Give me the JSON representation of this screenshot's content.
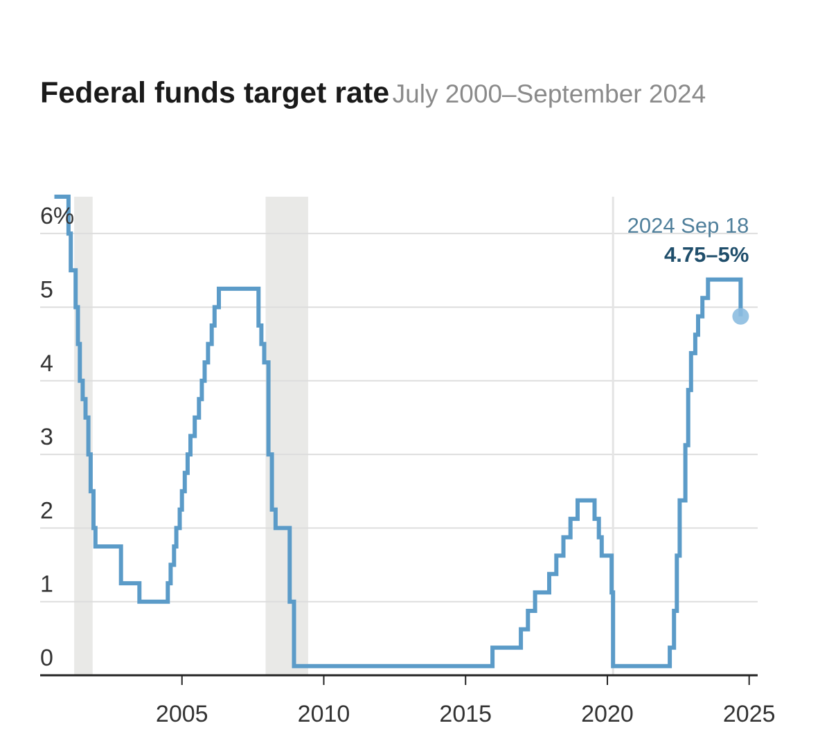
{
  "title": "Federal funds target rate",
  "subtitle": "July 2000–September 2024",
  "colors": {
    "line": "#5b9bc8",
    "marker": "#8cbde0",
    "recession": "#e9e9e7",
    "grid": "#dddddd",
    "axis": "#222222"
  },
  "chart_data": {
    "type": "line",
    "title": "Federal funds target rate",
    "subtitle": "July 2000–September 2024",
    "xlabel": "",
    "ylabel": "",
    "xlim": [
      2000,
      2025.3
    ],
    "ylim": [
      0,
      6.5
    ],
    "y_ticks": [
      0,
      1,
      2,
      3,
      4,
      5,
      6
    ],
    "y_tick_labels": [
      "0",
      "1",
      "2",
      "3",
      "4",
      "5",
      "6%"
    ],
    "x_ticks": [
      2005,
      2010,
      2015,
      2020,
      2025
    ],
    "x_tick_labels": [
      "2005",
      "2010",
      "2015",
      "2020",
      "2025"
    ],
    "grid": true,
    "step": true,
    "recessions": [
      [
        2001.2,
        2001.85
      ],
      [
        2007.95,
        2009.45
      ]
    ],
    "reference_line_x": 2020.2,
    "series": [
      {
        "x": [
          2000.5,
          2001.0,
          2001.08,
          2001.25,
          2001.33,
          2001.4,
          2001.5,
          2001.6,
          2001.7,
          2001.78,
          2001.88,
          2001.95,
          2002.85,
          2003.5,
          2004.5,
          2004.6,
          2004.72,
          2004.8,
          2004.92,
          2005.0,
          2005.1,
          2005.2,
          2005.3,
          2005.45,
          2005.6,
          2005.7,
          2005.8,
          2005.92,
          2006.05,
          2006.15,
          2006.3,
          2006.45,
          2007.7,
          2007.8,
          2007.9,
          2008.05,
          2008.17,
          2008.3,
          2008.8,
          2008.95
        ],
        "y": [
          6.5,
          6.0,
          5.5,
          5.0,
          4.5,
          4.0,
          3.75,
          3.5,
          3.0,
          2.5,
          2.0,
          1.75,
          1.25,
          1.0,
          1.25,
          1.5,
          1.75,
          2.0,
          2.25,
          2.5,
          2.75,
          3.0,
          3.25,
          3.5,
          3.75,
          4.0,
          4.25,
          4.5,
          4.75,
          5.0,
          5.25,
          5.25,
          4.75,
          4.5,
          4.25,
          3.0,
          2.25,
          2.0,
          1.0,
          0.125
        ]
      },
      {
        "x": [
          2015.95,
          2016.95,
          2017.2,
          2017.45,
          2017.95,
          2018.2,
          2018.45,
          2018.7,
          2018.95,
          2019.55,
          2019.7,
          2019.8,
          2020.15,
          2020.2,
          2022.2,
          2022.35,
          2022.45,
          2022.55,
          2022.75,
          2022.85,
          2022.95,
          2023.1,
          2023.2,
          2023.35,
          2023.55,
          2024.7
        ],
        "y": [
          0.375,
          0.625,
          0.875,
          1.125,
          1.375,
          1.625,
          1.875,
          2.125,
          2.375,
          2.125,
          1.875,
          1.625,
          1.125,
          0.125,
          0.375,
          0.875,
          1.625,
          2.375,
          3.125,
          3.875,
          4.375,
          4.625,
          4.875,
          5.125,
          5.375,
          4.875
        ]
      }
    ],
    "annotation": {
      "x": 2024.7,
      "y": 4.875,
      "date": "2024 Sep 18",
      "value": "4.75–5%"
    }
  }
}
